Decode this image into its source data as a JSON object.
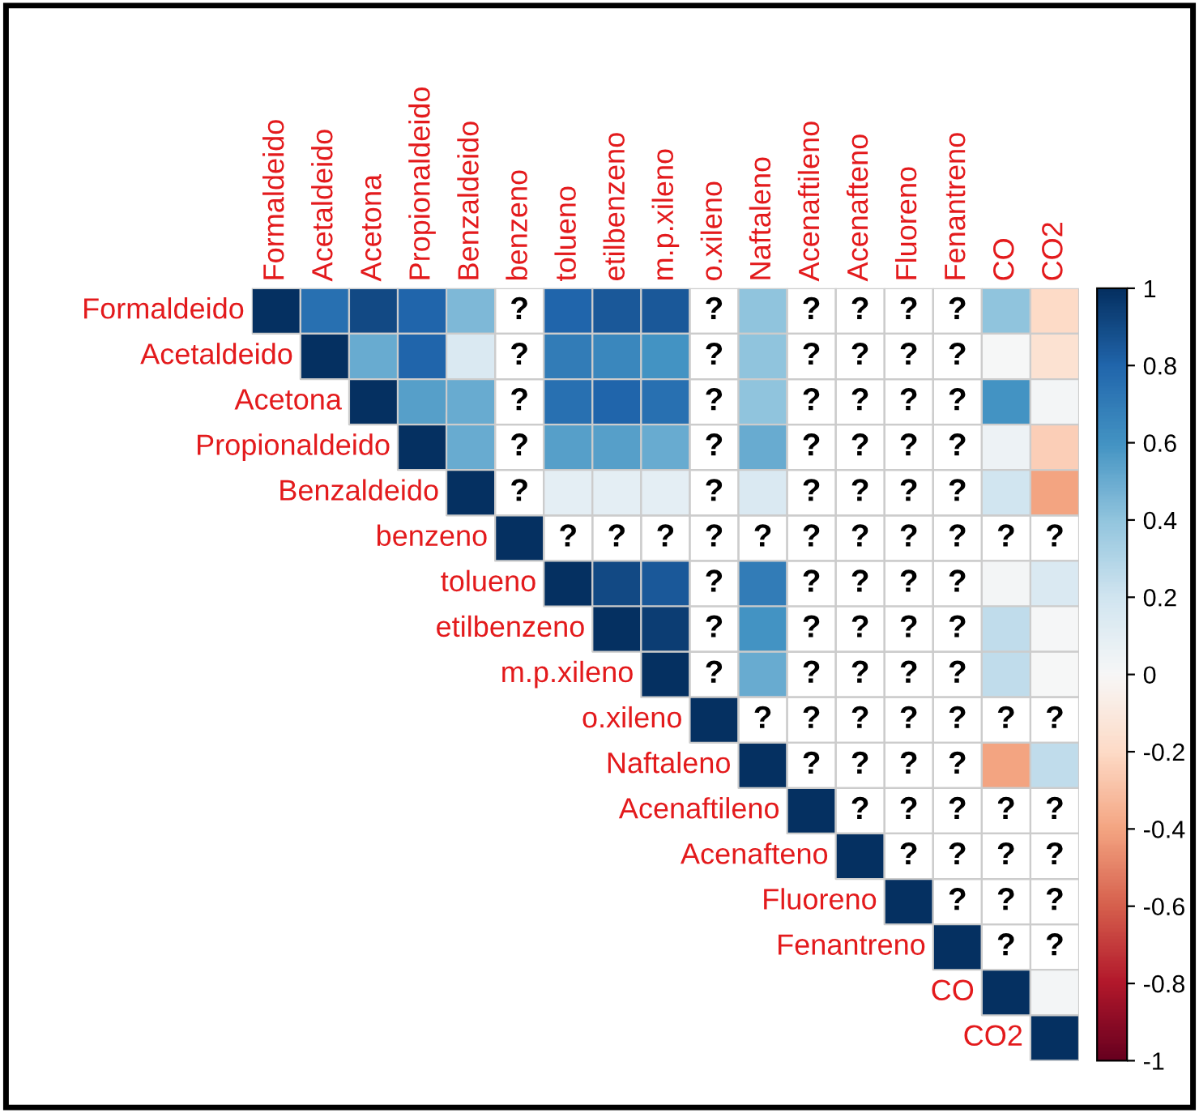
{
  "chart_data": {
    "type": "heatmap",
    "categories": [
      "Formaldeido",
      "Acetaldeido",
      "Acetona",
      "Propionaldeido",
      "Benzaldeido",
      "benzeno",
      "tolueno",
      "etilbenzeno",
      "m.p.xileno",
      "o.xileno",
      "Naftaleno",
      "Acenaftileno",
      "Acenafteno",
      "Fluoreno",
      "Fenantreno",
      "CO",
      "CO2"
    ],
    "y_categories": [
      "Formaldeido",
      "Acetaldeido",
      "Acetona",
      "Propionaldeido",
      "Benzaldeido",
      "benzeno",
      "tolueno",
      "etilbenzeno",
      "m.p.xileno",
      "o.xileno",
      "Naftaleno",
      "Acenaftileno",
      "Acenafteno",
      "Fluoreno",
      "Fenantreno",
      "CO",
      "CO2"
    ],
    "cells": [
      [
        1,
        0.75,
        0.9,
        0.8,
        0.45,
        null,
        0.8,
        0.85,
        0.85,
        null,
        0.4,
        null,
        null,
        null,
        null,
        0.4,
        -0.2
      ],
      [
        null,
        1,
        0.5,
        0.8,
        0.15,
        null,
        0.7,
        0.65,
        0.6,
        null,
        0.4,
        null,
        null,
        null,
        null,
        0,
        -0.15
      ],
      [
        null,
        null,
        1,
        0.55,
        0.5,
        null,
        0.75,
        0.8,
        0.75,
        null,
        0.4,
        null,
        null,
        null,
        null,
        0.6,
        0.02
      ],
      [
        null,
        null,
        null,
        1,
        0.5,
        null,
        0.55,
        0.55,
        0.5,
        null,
        0.5,
        null,
        null,
        null,
        null,
        0.05,
        -0.25
      ],
      [
        null,
        null,
        null,
        null,
        1,
        null,
        0.1,
        0.1,
        0.1,
        null,
        0.15,
        null,
        null,
        null,
        null,
        0.2,
        -0.4
      ],
      [
        null,
        null,
        null,
        null,
        null,
        1,
        null,
        null,
        null,
        null,
        null,
        null,
        null,
        null,
        null,
        null,
        null
      ],
      [
        null,
        null,
        null,
        null,
        null,
        null,
        1,
        0.9,
        0.85,
        null,
        0.7,
        null,
        null,
        null,
        null,
        0.02,
        0.15
      ],
      [
        null,
        null,
        null,
        null,
        null,
        null,
        null,
        1,
        0.95,
        null,
        0.6,
        null,
        null,
        null,
        null,
        0.25,
        0.01
      ],
      [
        null,
        null,
        null,
        null,
        null,
        null,
        null,
        null,
        1,
        null,
        0.5,
        null,
        null,
        null,
        null,
        0.25,
        0
      ],
      [
        null,
        null,
        null,
        null,
        null,
        null,
        null,
        null,
        null,
        1,
        null,
        null,
        null,
        null,
        null,
        null,
        null
      ],
      [
        null,
        null,
        null,
        null,
        null,
        null,
        null,
        null,
        null,
        null,
        1,
        null,
        null,
        null,
        null,
        -0.4,
        0.25
      ],
      [
        null,
        null,
        null,
        null,
        null,
        null,
        null,
        null,
        null,
        null,
        null,
        1,
        null,
        null,
        null,
        null,
        null
      ],
      [
        null,
        null,
        null,
        null,
        null,
        null,
        null,
        null,
        null,
        null,
        null,
        null,
        1,
        null,
        null,
        null,
        null
      ],
      [
        null,
        null,
        null,
        null,
        null,
        null,
        null,
        null,
        null,
        null,
        null,
        null,
        null,
        1,
        null,
        null,
        null
      ],
      [
        null,
        null,
        null,
        null,
        null,
        null,
        null,
        null,
        null,
        null,
        null,
        null,
        null,
        null,
        1,
        null,
        null
      ],
      [
        null,
        null,
        null,
        null,
        null,
        null,
        null,
        null,
        null,
        null,
        null,
        null,
        null,
        null,
        null,
        1,
        0.02
      ],
      [
        null,
        null,
        null,
        null,
        null,
        null,
        null,
        null,
        null,
        null,
        null,
        null,
        null,
        null,
        null,
        null,
        1
      ]
    ],
    "cell_labels": [
      [
        null,
        null,
        null,
        null,
        null,
        "?",
        null,
        null,
        null,
        "?",
        null,
        "?",
        "?",
        "?",
        "?",
        null,
        null
      ],
      [
        null,
        null,
        null,
        null,
        null,
        "?",
        null,
        null,
        null,
        "?",
        null,
        "?",
        "?",
        "?",
        "?",
        null,
        null
      ],
      [
        null,
        null,
        null,
        null,
        null,
        "?",
        null,
        null,
        null,
        "?",
        null,
        "?",
        "?",
        "?",
        "?",
        null,
        null
      ],
      [
        null,
        null,
        null,
        null,
        null,
        "?",
        null,
        null,
        null,
        "?",
        null,
        "?",
        "?",
        "?",
        "?",
        null,
        null
      ],
      [
        null,
        null,
        null,
        null,
        null,
        "?",
        null,
        null,
        null,
        "?",
        null,
        "?",
        "?",
        "?",
        "?",
        null,
        null
      ],
      [
        null,
        null,
        null,
        null,
        null,
        null,
        "?",
        "?",
        "?",
        "?",
        "?",
        "?",
        "?",
        "?",
        "?",
        "?",
        "?"
      ],
      [
        null,
        null,
        null,
        null,
        null,
        null,
        null,
        null,
        null,
        "?",
        null,
        "?",
        "?",
        "?",
        "?",
        null,
        null
      ],
      [
        null,
        null,
        null,
        null,
        null,
        null,
        null,
        null,
        null,
        "?",
        null,
        "?",
        "?",
        "?",
        "?",
        null,
        null
      ],
      [
        null,
        null,
        null,
        null,
        null,
        null,
        null,
        null,
        null,
        "?",
        null,
        "?",
        "?",
        "?",
        "?",
        null,
        null
      ],
      [
        null,
        null,
        null,
        null,
        null,
        null,
        null,
        null,
        null,
        null,
        "?",
        "?",
        "?",
        "?",
        "?",
        "?",
        "?"
      ],
      [
        null,
        null,
        null,
        null,
        null,
        null,
        null,
        null,
        null,
        null,
        null,
        "?",
        "?",
        "?",
        "?",
        null,
        null
      ],
      [
        null,
        null,
        null,
        null,
        null,
        null,
        null,
        null,
        null,
        null,
        null,
        null,
        "?",
        "?",
        "?",
        "?",
        "?"
      ],
      [
        null,
        null,
        null,
        null,
        null,
        null,
        null,
        null,
        null,
        null,
        null,
        null,
        null,
        "?",
        "?",
        "?",
        "?"
      ],
      [
        null,
        null,
        null,
        null,
        null,
        null,
        null,
        null,
        null,
        null,
        null,
        null,
        null,
        null,
        "?",
        "?",
        "?"
      ],
      [
        null,
        null,
        null,
        null,
        null,
        null,
        null,
        null,
        null,
        null,
        null,
        null,
        null,
        null,
        null,
        "?",
        "?"
      ],
      [
        null,
        null,
        null,
        null,
        null,
        null,
        null,
        null,
        null,
        null,
        null,
        null,
        null,
        null,
        null,
        null,
        null
      ],
      [
        null,
        null,
        null,
        null,
        null,
        null,
        null,
        null,
        null,
        null,
        null,
        null,
        null,
        null,
        null,
        null,
        null
      ]
    ],
    "clim": [
      -1,
      1
    ],
    "cticks": [
      -1,
      -0.8,
      -0.6,
      -0.4,
      -0.2,
      0,
      0.2,
      0.4,
      0.6,
      0.8,
      1
    ]
  }
}
